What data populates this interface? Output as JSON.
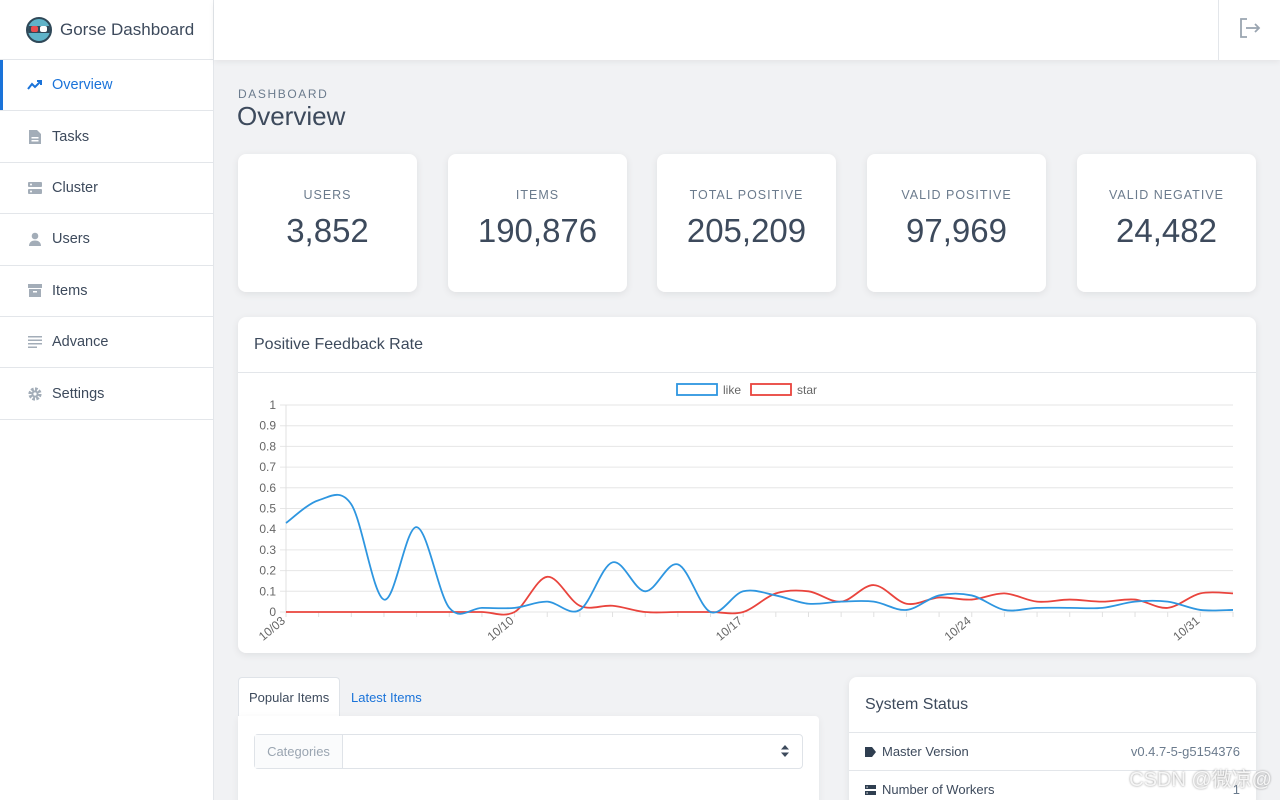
{
  "brand": {
    "title": "Gorse Dashboard"
  },
  "sidebar": {
    "items": [
      {
        "label": "Overview",
        "icon": "trend-icon"
      },
      {
        "label": "Tasks",
        "icon": "file-icon"
      },
      {
        "label": "Cluster",
        "icon": "server-icon"
      },
      {
        "label": "Users",
        "icon": "user-icon"
      },
      {
        "label": "Items",
        "icon": "archive-icon"
      },
      {
        "label": "Advance",
        "icon": "lines-icon"
      },
      {
        "label": "Settings",
        "icon": "gear-icon"
      }
    ]
  },
  "page": {
    "subtitle": "DASHBOARD",
    "title": "Overview"
  },
  "stats": [
    {
      "label": "USERS",
      "value": "3,852"
    },
    {
      "label": "ITEMS",
      "value": "190,876"
    },
    {
      "label": "TOTAL POSITIVE",
      "value": "205,209"
    },
    {
      "label": "VALID POSITIVE",
      "value": "97,969"
    },
    {
      "label": "VALID NEGATIVE",
      "value": "24,482"
    }
  ],
  "chart": {
    "title": "Positive Feedback Rate"
  },
  "chart_data": {
    "type": "line",
    "title": "Positive Feedback Rate",
    "ylim": [
      0,
      1
    ],
    "yticks": [
      "0",
      "0.1",
      "0.2",
      "0.3",
      "0.4",
      "0.5",
      "0.6",
      "0.7",
      "0.8",
      "0.9",
      "1"
    ],
    "xtick_labels": [
      {
        "i": 0,
        "label": "10/03"
      },
      {
        "i": 7,
        "label": "10/10"
      },
      {
        "i": 14,
        "label": "10/17"
      },
      {
        "i": 21,
        "label": "10/24"
      },
      {
        "i": 28,
        "label": "10/31"
      }
    ],
    "points": 30,
    "series": [
      {
        "name": "like",
        "color": "#2e96e0",
        "values": [
          0.43,
          0.54,
          0.52,
          0.06,
          0.41,
          0.02,
          0.02,
          0.02,
          0.05,
          0.01,
          0.24,
          0.1,
          0.23,
          0.0,
          0.1,
          0.08,
          0.04,
          0.05,
          0.05,
          0.01,
          0.08,
          0.08,
          0.01,
          0.02,
          0.02,
          0.02,
          0.05,
          0.05,
          0.01,
          0.01
        ]
      },
      {
        "name": "star",
        "color": "#e9443d",
        "values": [
          0.0,
          0.0,
          0.0,
          0.0,
          0.0,
          0.0,
          0.0,
          0.0,
          0.17,
          0.03,
          0.03,
          0.0,
          0.0,
          0.0,
          0.0,
          0.09,
          0.1,
          0.05,
          0.13,
          0.04,
          0.07,
          0.06,
          0.09,
          0.05,
          0.06,
          0.05,
          0.06,
          0.02,
          0.09,
          0.09
        ]
      }
    ]
  },
  "tabs": {
    "popular": "Popular Items",
    "latest": "Latest Items"
  },
  "filter": {
    "label": "Categories",
    "selected": ""
  },
  "status": {
    "title": "System Status",
    "rows": [
      {
        "label": "Master Version",
        "value": "v0.4.7-5-g5154376"
      },
      {
        "label": "Number of Workers",
        "value": "1"
      }
    ]
  },
  "watermark": "CSDN @微凉@",
  "colors": {
    "accent": "#1a73d9",
    "like": "#2e96e0",
    "star": "#e9443d"
  }
}
